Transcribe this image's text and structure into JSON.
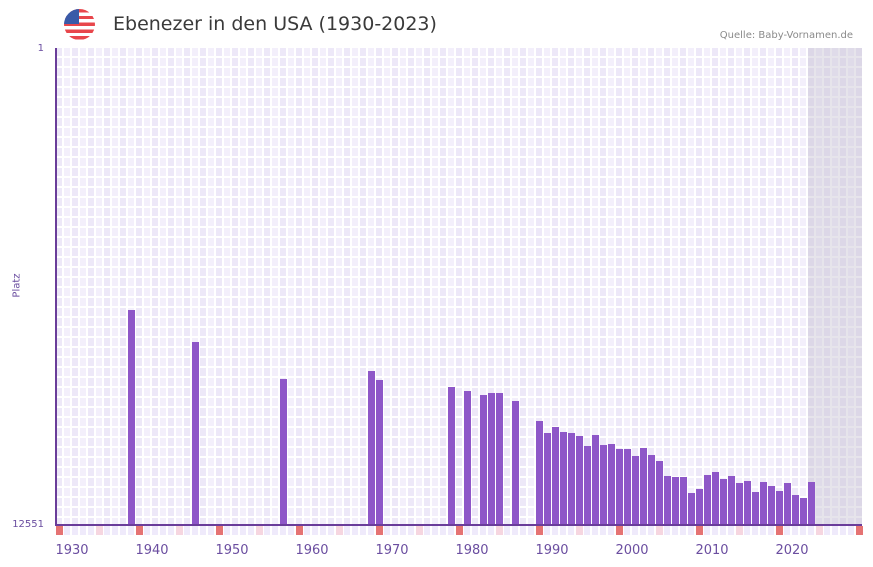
{
  "header": {
    "title": "Ebenezer in den USA (1930-2023)",
    "flag_icon": "us-flag-icon",
    "source": "Quelle: Baby-Vornamen.de"
  },
  "colors": {
    "bar": "#8e57c8",
    "axis": "#6a3d9a",
    "decade_marker": "#e57373",
    "half_decade_marker": "#f6d6e0",
    "future_shade": "#e2dfec"
  },
  "chart_data": {
    "type": "bar",
    "title": "Ebenezer in den USA (1930-2023)",
    "xlabel": "",
    "ylabel": "Platz",
    "y_inverted": true,
    "ylim": [
      1,
      12551
    ],
    "y_ticks": [
      "1",
      "12551"
    ],
    "x_ticks": [
      "1930",
      "1940",
      "1950",
      "1960",
      "1970",
      "1980",
      "1990",
      "2000",
      "2010",
      "2020"
    ],
    "grid": true,
    "legend": null,
    "series": [
      {
        "name": "Platz",
        "x": [
          1937,
          1945,
          1956,
          1967,
          1968,
          1977,
          1979,
          1981,
          1982,
          1983,
          1985,
          1988,
          1989,
          1990,
          1991,
          1992,
          1993,
          1994,
          1995,
          1996,
          1997,
          1998,
          1999,
          2000,
          2001,
          2002,
          2003,
          2004,
          2005,
          2006,
          2007,
          2008,
          2009,
          2010,
          2011,
          2012,
          2013,
          2014,
          2015,
          2016,
          2017,
          2018,
          2019,
          2020,
          2021,
          2022
        ],
        "values": [
          6894,
          7735,
          8709,
          8498,
          8735,
          8919,
          9024,
          9130,
          9077,
          9077,
          9287,
          9814,
          10130,
          9972,
          10104,
          10130,
          10209,
          10472,
          10183,
          10446,
          10419,
          10551,
          10551,
          10735,
          10525,
          10709,
          10867,
          11262,
          11288,
          11288,
          11709,
          11604,
          11235,
          11156,
          11341,
          11262,
          11446,
          11393,
          11683,
          11420,
          11525,
          11656,
          11446,
          11762,
          11841,
          11420
        ]
      }
    ]
  }
}
